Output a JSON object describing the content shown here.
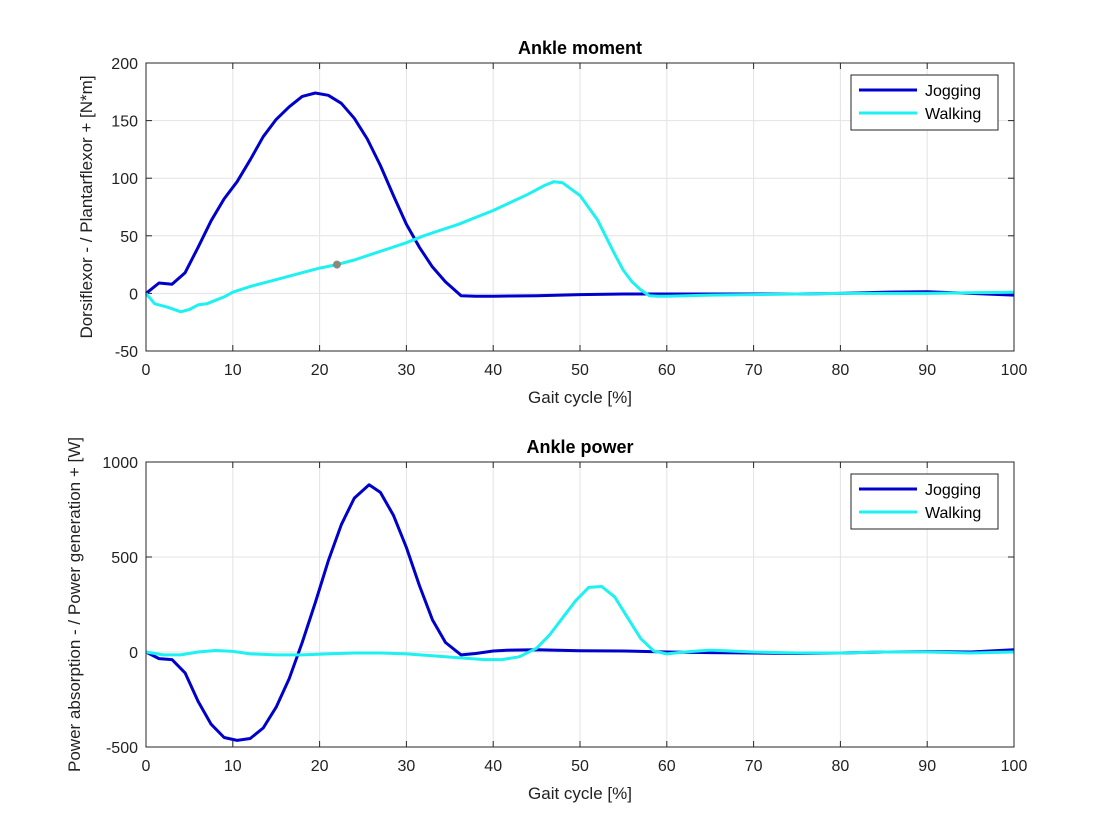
{
  "chart_data": [
    {
      "type": "line",
      "title": "Ankle moment",
      "xlabel": "Gait cycle [%]",
      "ylabel": "Dorsiflexor - / Plantarflexor + [N*m]",
      "xlim": [
        0,
        100
      ],
      "ylim": [
        -50,
        200
      ],
      "xticks": [
        "0",
        "10",
        "20",
        "30",
        "40",
        "50",
        "60",
        "70",
        "80",
        "90",
        "100"
      ],
      "yticks": [
        "-50",
        "0",
        "50",
        "100",
        "150",
        "200"
      ],
      "grid": true,
      "legend_position": "top-right",
      "series": [
        {
          "name": "Jogging",
          "color": "#0000cd",
          "x": [
            0,
            1.5,
            3,
            4.5,
            6,
            7.5,
            9,
            10.5,
            12,
            13.5,
            15,
            16.5,
            18,
            19.5,
            21,
            22.5,
            24,
            25.5,
            27,
            28.5,
            30,
            31.5,
            33,
            34.5,
            36.3,
            38,
            40,
            42,
            45,
            50,
            55,
            60,
            65,
            70,
            75,
            80,
            85,
            90,
            95,
            100
          ],
          "y": [
            0,
            9,
            8,
            18,
            40,
            63,
            82,
            97,
            116,
            136,
            151,
            162,
            171,
            174,
            172,
            165,
            152,
            134,
            111,
            85,
            60,
            40,
            23,
            10,
            -2,
            -2.5,
            -2.5,
            -2.3,
            -2,
            -1,
            -0.5,
            -0.5,
            -0.5,
            -0.5,
            -0.5,
            0,
            1,
            1.5,
            0,
            -1.5
          ]
        },
        {
          "name": "Walking",
          "color": "#1ef1f1",
          "x": [
            0,
            1,
            2.5,
            4,
            5,
            6,
            7,
            8,
            9,
            10,
            12,
            14,
            16,
            18,
            20,
            22,
            24,
            26,
            28,
            30,
            32,
            34,
            36,
            38,
            40,
            42,
            44,
            46,
            47,
            48,
            50,
            52,
            54,
            55,
            56,
            57,
            58,
            59,
            60,
            65,
            70,
            75,
            80,
            85,
            90,
            95,
            100
          ],
          "y": [
            0,
            -9,
            -12,
            -16,
            -14,
            -10,
            -9,
            -6,
            -3,
            1,
            6,
            10,
            14,
            18,
            22,
            25,
            29,
            34,
            39,
            44,
            50,
            55,
            60,
            66,
            72,
            79,
            86,
            94,
            97,
            96,
            85,
            64,
            34,
            20,
            10,
            3,
            -2,
            -2.5,
            -2.5,
            -1.5,
            -1,
            -0.5,
            0,
            0,
            0,
            0.5,
            1
          ]
        }
      ]
    },
    {
      "type": "line",
      "title": "Ankle power",
      "xlabel": "Gait cycle [%]",
      "ylabel": "Power absorption - / Power generation + [W]",
      "xlim": [
        0,
        100
      ],
      "ylim": [
        -500,
        1000
      ],
      "xticks": [
        "0",
        "10",
        "20",
        "30",
        "40",
        "50",
        "60",
        "70",
        "80",
        "90",
        "100"
      ],
      "yticks": [
        "-500",
        "0",
        "500",
        "1000"
      ],
      "grid": true,
      "legend_position": "top-right",
      "series": [
        {
          "name": "Jogging",
          "color": "#0000cd",
          "x": [
            0,
            1.5,
            3,
            4.5,
            6,
            7.5,
            9,
            10.5,
            12,
            13.5,
            15,
            16.5,
            18,
            19.5,
            21,
            22.5,
            24,
            25.7,
            27,
            28.5,
            30,
            31.5,
            33,
            34.5,
            36.3,
            38,
            40,
            42,
            45,
            50,
            55,
            60,
            65,
            70,
            75,
            80,
            85,
            90,
            95,
            100
          ],
          "y": [
            0,
            -35,
            -40,
            -110,
            -260,
            -380,
            -450,
            -465,
            -455,
            -400,
            -290,
            -140,
            50,
            260,
            480,
            670,
            810,
            880,
            840,
            720,
            550,
            350,
            170,
            50,
            -15,
            -8,
            5,
            10,
            12,
            7,
            5,
            0,
            -3,
            -5,
            -8,
            -5,
            0,
            2,
            0,
            12
          ]
        },
        {
          "name": "Walking",
          "color": "#1ef1f1",
          "x": [
            0,
            2,
            4,
            6,
            8,
            10,
            12,
            15,
            18,
            21,
            24,
            27,
            30,
            33,
            36,
            39,
            41,
            43,
            45,
            46.5,
            48,
            49.5,
            51,
            52.5,
            54,
            55.5,
            57,
            58.5,
            60,
            62,
            65,
            70,
            75,
            80,
            85,
            90,
            95,
            100
          ],
          "y": [
            0,
            -15,
            -15,
            0,
            8,
            3,
            -10,
            -15,
            -15,
            -10,
            -5,
            -5,
            -10,
            -20,
            -30,
            -40,
            -40,
            -25,
            20,
            90,
            180,
            270,
            340,
            345,
            290,
            180,
            70,
            5,
            -10,
            0,
            10,
            0,
            -5,
            -5,
            0,
            0,
            -5,
            0
          ]
        }
      ]
    }
  ]
}
